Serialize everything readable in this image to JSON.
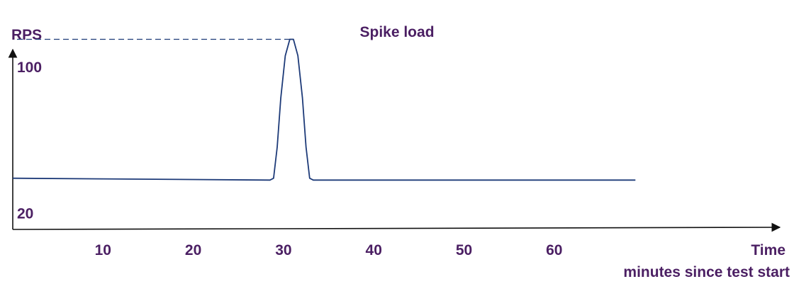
{
  "chart_data": {
    "type": "line",
    "title": "Spike load",
    "ylabel": "RPS",
    "xlabel": "Time",
    "xlabel_sub": "minutes since test start",
    "x_ticks": [
      10,
      20,
      30,
      40,
      50,
      60
    ],
    "y_ticks": [
      20,
      100
    ],
    "xlim": [
      0,
      85
    ],
    "ylim": [
      0,
      110
    ],
    "grid": false,
    "series": [
      {
        "color": "#1d3a78",
        "points": [
          {
            "x": 0,
            "y": 28
          },
          {
            "x": 28.5,
            "y": 27
          },
          {
            "x": 28.9,
            "y": 28
          },
          {
            "x": 29.3,
            "y": 45
          },
          {
            "x": 29.7,
            "y": 72
          },
          {
            "x": 30.2,
            "y": 95
          },
          {
            "x": 30.7,
            "y": 104
          },
          {
            "x": 31.1,
            "y": 104
          },
          {
            "x": 31.6,
            "y": 95
          },
          {
            "x": 32.1,
            "y": 72
          },
          {
            "x": 32.5,
            "y": 45
          },
          {
            "x": 32.9,
            "y": 28
          },
          {
            "x": 33.3,
            "y": 27
          },
          {
            "x": 69,
            "y": 27
          }
        ]
      }
    ],
    "reference_line": {
      "y": 104,
      "x_end": 30.9,
      "style": "dashed"
    }
  }
}
